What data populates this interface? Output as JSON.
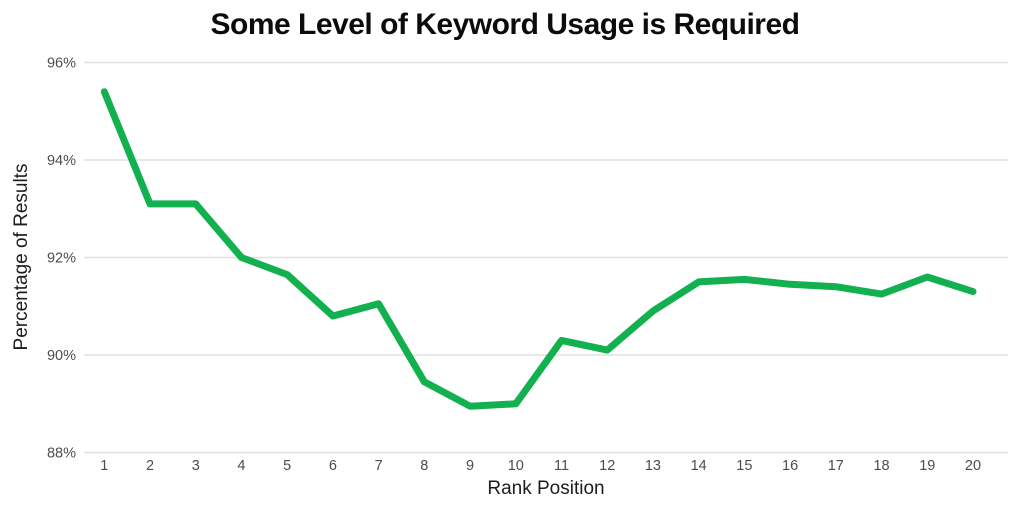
{
  "page": {
    "background_color": "#ffffff"
  },
  "chart_data": {
    "type": "line",
    "title": "Some Level of Keyword Usage is Required",
    "xlabel": "Rank Position",
    "ylabel": "Percentage of Results",
    "categories": [
      "1",
      "2",
      "3",
      "4",
      "5",
      "6",
      "7",
      "8",
      "9",
      "10",
      "11",
      "12",
      "13",
      "14",
      "15",
      "16",
      "17",
      "18",
      "19",
      "20"
    ],
    "series": [
      {
        "name": "Percentage of Results",
        "values": [
          95.4,
          93.1,
          93.1,
          92.0,
          91.65,
          90.8,
          91.05,
          89.45,
          88.95,
          89.0,
          90.3,
          90.1,
          90.9,
          91.5,
          91.55,
          91.45,
          91.4,
          91.25,
          91.6,
          91.3
        ]
      }
    ],
    "ylim": [
      88,
      96
    ],
    "yticks": [
      96,
      94,
      92,
      90,
      88
    ],
    "ytick_labels": [
      "96%",
      "94%",
      "92%",
      "90%",
      "88%"
    ],
    "grid": "horizontal-only",
    "legend": "none",
    "colors": {
      "line": "#12b04f",
      "gridline": "#e0e0e0",
      "title": "#0c0c0c",
      "tick_label": "#4d4d4d",
      "axis_title": "#1d1d1d"
    },
    "line_width": 7
  }
}
